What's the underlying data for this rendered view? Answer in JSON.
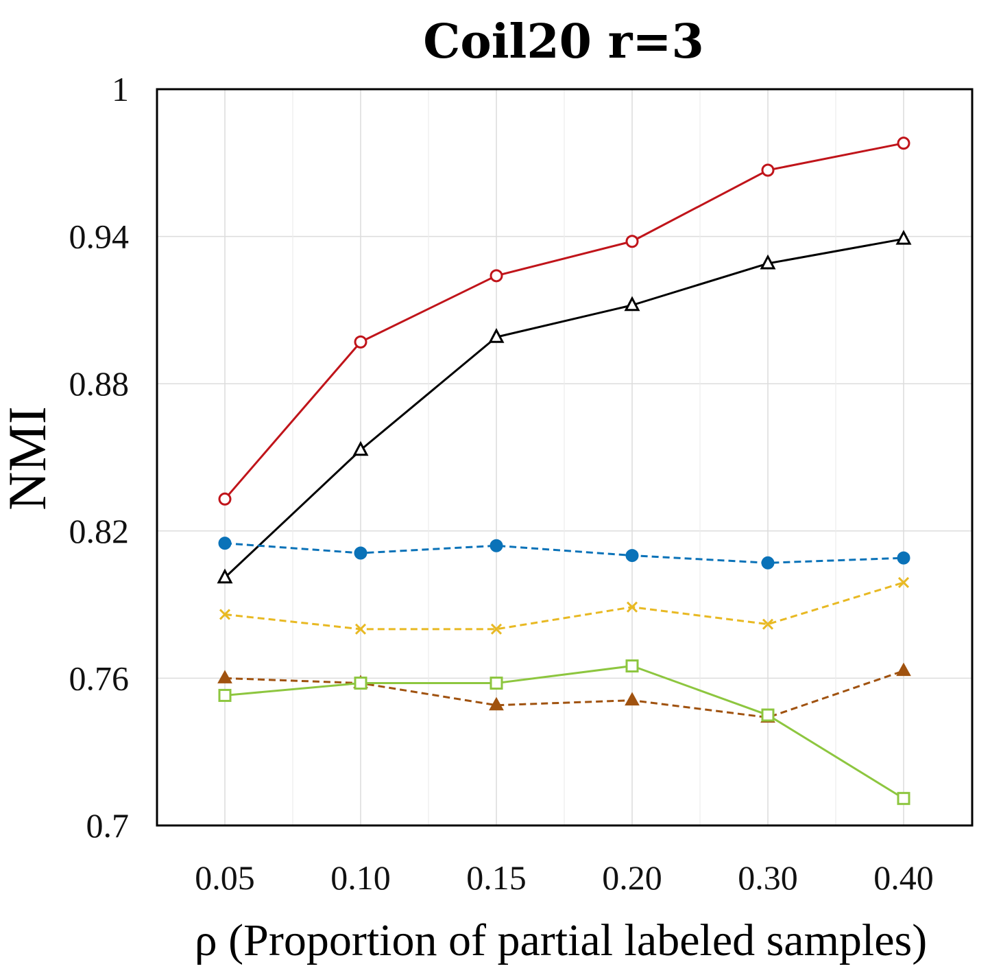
{
  "chart_data": {
    "type": "line",
    "title": "Coil20 r=3",
    "xlabel": "ρ (Proportion of partial labeled samples)",
    "ylabel": "NMI",
    "categories": [
      "0.05",
      "0.10",
      "0.15",
      "0.20",
      "0.30",
      "0.40"
    ],
    "ylim": [
      0.7,
      1.0
    ],
    "yticks": [
      0.7,
      0.76,
      0.82,
      0.88,
      0.94,
      1
    ],
    "ytick_labels": [
      "0.7",
      "0.76",
      "0.82",
      "0.88",
      "0.94",
      "1"
    ],
    "grid": true,
    "series": [
      {
        "name": "series-red",
        "color": "#c0141a",
        "dash": "solid",
        "marker": "circle-open",
        "values": [
          0.833,
          0.897,
          0.924,
          0.938,
          0.967,
          0.978
        ]
      },
      {
        "name": "series-black",
        "color": "#000000",
        "dash": "solid",
        "marker": "triangle-open",
        "values": [
          0.801,
          0.853,
          0.899,
          0.912,
          0.929,
          0.939
        ]
      },
      {
        "name": "series-blue",
        "color": "#0a72b8",
        "dash": "dashed",
        "marker": "circle-filled",
        "values": [
          0.815,
          0.811,
          0.814,
          0.81,
          0.807,
          0.809
        ]
      },
      {
        "name": "series-yellow",
        "color": "#e8b923",
        "dash": "dashed",
        "marker": "x",
        "values": [
          0.786,
          0.78,
          0.78,
          0.789,
          0.782,
          0.799
        ]
      },
      {
        "name": "series-brown",
        "color": "#a0520f",
        "dash": "dashed",
        "marker": "triangle-filled",
        "values": [
          0.76,
          0.758,
          0.749,
          0.751,
          0.744,
          0.763
        ]
      },
      {
        "name": "series-green",
        "color": "#8dc63f",
        "dash": "solid",
        "marker": "square-open",
        "values": [
          0.753,
          0.758,
          0.758,
          0.765,
          0.745,
          0.711
        ]
      }
    ]
  }
}
